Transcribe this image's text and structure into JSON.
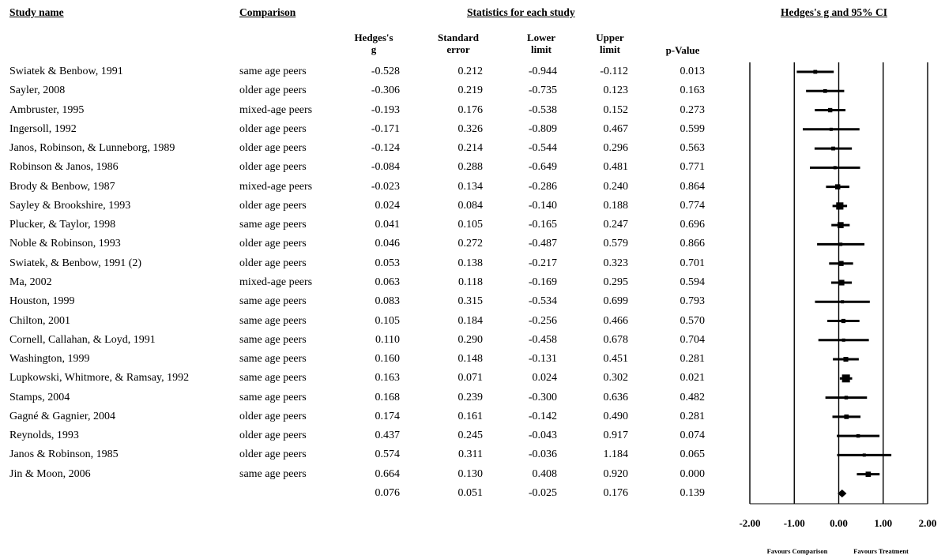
{
  "headers": {
    "study": "Study name",
    "comparison": "Comparison",
    "stats": "Statistics for each study",
    "plot": "Hedges's g and 95% CI"
  },
  "columns": {
    "g_line1": "Hedges's",
    "g_line2": "g",
    "se_line1": "Standard",
    "se_line2": "error",
    "lower_line1": "Lower",
    "lower_line2": "limit",
    "upper_line1": "Upper",
    "upper_line2": "limit",
    "p": "p-Value"
  },
  "chart_data": {
    "type": "forest",
    "xlim": [
      -2,
      2
    ],
    "x_ticks": [
      "-2.00",
      "-1.00",
      "0.00",
      "1.00",
      "2.00"
    ],
    "favours_left": "Favours Comparison",
    "favours_right": "Favours Treatment",
    "studies": [
      {
        "name": "Swiatek & Benbow, 1991",
        "comparison": "same age peers",
        "g": "-0.528",
        "se": "0.212",
        "lower": "-0.944",
        "upper": "-0.112",
        "p": "0.013"
      },
      {
        "name": "Sayler, 2008",
        "comparison": "older age peers",
        "g": "-0.306",
        "se": "0.219",
        "lower": "-0.735",
        "upper": "0.123",
        "p": "0.163"
      },
      {
        "name": "Ambruster, 1995",
        "comparison": "mixed-age peers",
        "g": "-0.193",
        "se": "0.176",
        "lower": "-0.538",
        "upper": "0.152",
        "p": "0.273"
      },
      {
        "name": "Ingersoll, 1992",
        "comparison": "older age peers",
        "g": "-0.171",
        "se": "0.326",
        "lower": "-0.809",
        "upper": "0.467",
        "p": "0.599"
      },
      {
        "name": "Janos, Robinson, & Lunneborg, 1989",
        "comparison": "older age peers",
        "g": "-0.124",
        "se": "0.214",
        "lower": "-0.544",
        "upper": "0.296",
        "p": "0.563"
      },
      {
        "name": "Robinson & Janos, 1986",
        "comparison": "older age peers",
        "g": "-0.084",
        "se": "0.288",
        "lower": "-0.649",
        "upper": "0.481",
        "p": "0.771"
      },
      {
        "name": "Brody & Benbow, 1987",
        "comparison": "mixed-age peers",
        "g": "-0.023",
        "se": "0.134",
        "lower": "-0.286",
        "upper": "0.240",
        "p": "0.864"
      },
      {
        "name": "Sayley & Brookshire, 1993",
        "comparison": "older age peers",
        "g": "0.024",
        "se": "0.084",
        "lower": "-0.140",
        "upper": "0.188",
        "p": "0.774"
      },
      {
        "name": "Plucker, & Taylor, 1998",
        "comparison": "same age peers",
        "g": "0.041",
        "se": "0.105",
        "lower": "-0.165",
        "upper": "0.247",
        "p": "0.696"
      },
      {
        "name": "Noble & Robinson, 1993",
        "comparison": "older age peers",
        "g": "0.046",
        "se": "0.272",
        "lower": "-0.487",
        "upper": "0.579",
        "p": "0.866"
      },
      {
        "name": "Swiatek, & Benbow, 1991 (2)",
        "comparison": "older age peers",
        "g": "0.053",
        "se": "0.138",
        "lower": "-0.217",
        "upper": "0.323",
        "p": "0.701"
      },
      {
        "name": "Ma, 2002",
        "comparison": "mixed-age peers",
        "g": "0.063",
        "se": "0.118",
        "lower": "-0.169",
        "upper": "0.295",
        "p": "0.594"
      },
      {
        "name": "Houston, 1999",
        "comparison": "same age peers",
        "g": "0.083",
        "se": "0.315",
        "lower": "-0.534",
        "upper": "0.699",
        "p": "0.793"
      },
      {
        "name": "Chilton, 2001",
        "comparison": "same age peers",
        "g": "0.105",
        "se": "0.184",
        "lower": "-0.256",
        "upper": "0.466",
        "p": "0.570"
      },
      {
        "name": "Cornell, Callahan, & Loyd, 1991",
        "comparison": "same age peers",
        "g": "0.110",
        "se": "0.290",
        "lower": "-0.458",
        "upper": "0.678",
        "p": "0.704"
      },
      {
        "name": "Washington, 1999",
        "comparison": "same age peers",
        "g": "0.160",
        "se": "0.148",
        "lower": "-0.131",
        "upper": "0.451",
        "p": "0.281"
      },
      {
        "name": "Lupkowski, Whitmore, & Ramsay, 1992",
        "comparison": "same age peers",
        "g": "0.163",
        "se": "0.071",
        "lower": "0.024",
        "upper": "0.302",
        "p": "0.021"
      },
      {
        "name": "Stamps, 2004",
        "comparison": "same age peers",
        "g": "0.168",
        "se": "0.239",
        "lower": "-0.300",
        "upper": "0.636",
        "p": "0.482"
      },
      {
        "name": "Gagné & Gagnier, 2004",
        "comparison": "older age peers",
        "g": "0.174",
        "se": "0.161",
        "lower": "-0.142",
        "upper": "0.490",
        "p": "0.281"
      },
      {
        "name": "Reynolds, 1993",
        "comparison": "older age peers",
        "g": "0.437",
        "se": "0.245",
        "lower": "-0.043",
        "upper": "0.917",
        "p": "0.074"
      },
      {
        "name": "Janos & Robinson, 1985",
        "comparison": "older age peers",
        "g": "0.574",
        "se": "0.311",
        "lower": "-0.036",
        "upper": "1.184",
        "p": "0.065"
      },
      {
        "name": "Jin & Moon, 2006",
        "comparison": "same age peers",
        "g": "0.664",
        "se": "0.130",
        "lower": "0.408",
        "upper": "0.920",
        "p": "0.000"
      }
    ],
    "summary": {
      "g": "0.076",
      "se": "0.051",
      "lower": "-0.025",
      "upper": "0.176",
      "p": "0.139"
    }
  }
}
